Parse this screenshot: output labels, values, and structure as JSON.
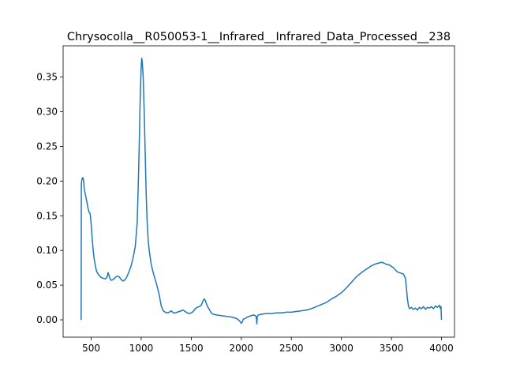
{
  "chart_data": {
    "type": "line",
    "title": "Chrysocolla__R050053-1__Infrared__Infrared_Data_Processed__238",
    "xlabel": "",
    "ylabel": "",
    "xlim": [
      220,
      4130
    ],
    "ylim": [
      -0.025,
      0.395
    ],
    "xticks": [
      500,
      1000,
      1500,
      2000,
      2500,
      3000,
      3500,
      4000
    ],
    "xtick_labels": [
      "500",
      "1000",
      "1500",
      "2000",
      "2500",
      "3000",
      "3500",
      "4000"
    ],
    "yticks": [
      0.0,
      0.05,
      0.1,
      0.15,
      0.2,
      0.25,
      0.3,
      0.35
    ],
    "ytick_labels": [
      "0.00",
      "0.05",
      "0.10",
      "0.15",
      "0.20",
      "0.25",
      "0.30",
      "0.35"
    ],
    "grid": false,
    "legend": "none",
    "line_color": "#1f77b4",
    "series": [
      {
        "x": [
          400,
          402,
          405,
          410,
          415,
          420,
          425,
          430,
          440,
          450,
          460,
          470,
          480,
          490,
          500,
          510,
          520,
          530,
          540,
          550,
          560,
          570,
          580,
          600,
          620,
          640,
          650,
          660,
          670,
          680,
          690,
          700,
          720,
          740,
          760,
          780,
          800,
          820,
          840,
          860,
          880,
          900,
          920,
          940,
          960,
          970,
          980,
          990,
          1000,
          1005,
          1010,
          1020,
          1030,
          1040,
          1050,
          1060,
          1070,
          1080,
          1090,
          1100,
          1120,
          1140,
          1160,
          1180,
          1200,
          1220,
          1240,
          1260,
          1280,
          1300,
          1320,
          1340,
          1360,
          1380,
          1400,
          1420,
          1440,
          1460,
          1480,
          1500,
          1520,
          1540,
          1560,
          1580,
          1600,
          1620,
          1630,
          1640,
          1650,
          1660,
          1680,
          1700,
          1720,
          1750,
          1800,
          1850,
          1900,
          1950,
          1980,
          2000,
          2010,
          2020,
          2040,
          2060,
          2080,
          2100,
          2120,
          2140,
          2150,
          2155,
          2160,
          2170,
          2200,
          2250,
          2300,
          2350,
          2400,
          2450,
          2500,
          2550,
          2600,
          2650,
          2700,
          2750,
          2800,
          2850,
          2900,
          2950,
          3000,
          3050,
          3100,
          3150,
          3200,
          3250,
          3300,
          3350,
          3380,
          3400,
          3420,
          3450,
          3480,
          3500,
          3520,
          3540,
          3560,
          3580,
          3600,
          3620,
          3640,
          3650,
          3660,
          3670,
          3680,
          3700,
          3720,
          3740,
          3760,
          3780,
          3800,
          3820,
          3840,
          3860,
          3880,
          3900,
          3920,
          3940,
          3960,
          3980,
          3990,
          3995,
          3998,
          4000
        ],
        "y": [
          0.0,
          0.195,
          0.2,
          0.203,
          0.205,
          0.204,
          0.2,
          0.19,
          0.182,
          0.175,
          0.168,
          0.16,
          0.155,
          0.153,
          0.138,
          0.118,
          0.1,
          0.088,
          0.08,
          0.072,
          0.068,
          0.066,
          0.064,
          0.061,
          0.06,
          0.059,
          0.06,
          0.062,
          0.068,
          0.063,
          0.059,
          0.057,
          0.058,
          0.061,
          0.063,
          0.062,
          0.058,
          0.056,
          0.058,
          0.063,
          0.07,
          0.078,
          0.09,
          0.105,
          0.14,
          0.19,
          0.25,
          0.32,
          0.365,
          0.377,
          0.373,
          0.35,
          0.3,
          0.24,
          0.18,
          0.14,
          0.115,
          0.1,
          0.09,
          0.08,
          0.068,
          0.058,
          0.048,
          0.036,
          0.02,
          0.013,
          0.011,
          0.01,
          0.011,
          0.013,
          0.01,
          0.01,
          0.011,
          0.012,
          0.013,
          0.014,
          0.012,
          0.01,
          0.009,
          0.01,
          0.012,
          0.016,
          0.018,
          0.019,
          0.021,
          0.028,
          0.03,
          0.028,
          0.024,
          0.02,
          0.015,
          0.01,
          0.008,
          0.007,
          0.006,
          0.005,
          0.004,
          0.002,
          -0.001,
          -0.005,
          -0.003,
          0.001,
          0.002,
          0.004,
          0.005,
          0.006,
          0.007,
          0.006,
          0.004,
          -0.006,
          0.005,
          0.007,
          0.008,
          0.009,
          0.009,
          0.01,
          0.01,
          0.011,
          0.011,
          0.012,
          0.013,
          0.014,
          0.016,
          0.019,
          0.022,
          0.025,
          0.03,
          0.034,
          0.039,
          0.046,
          0.054,
          0.062,
          0.068,
          0.073,
          0.078,
          0.081,
          0.082,
          0.083,
          0.082,
          0.08,
          0.079,
          0.077,
          0.075,
          0.072,
          0.069,
          0.068,
          0.067,
          0.066,
          0.06,
          0.045,
          0.03,
          0.02,
          0.016,
          0.018,
          0.015,
          0.017,
          0.014,
          0.018,
          0.016,
          0.019,
          0.015,
          0.018,
          0.017,
          0.019,
          0.016,
          0.02,
          0.018,
          0.021,
          0.016,
          0.019,
          0.008,
          0.0
        ]
      }
    ]
  }
}
